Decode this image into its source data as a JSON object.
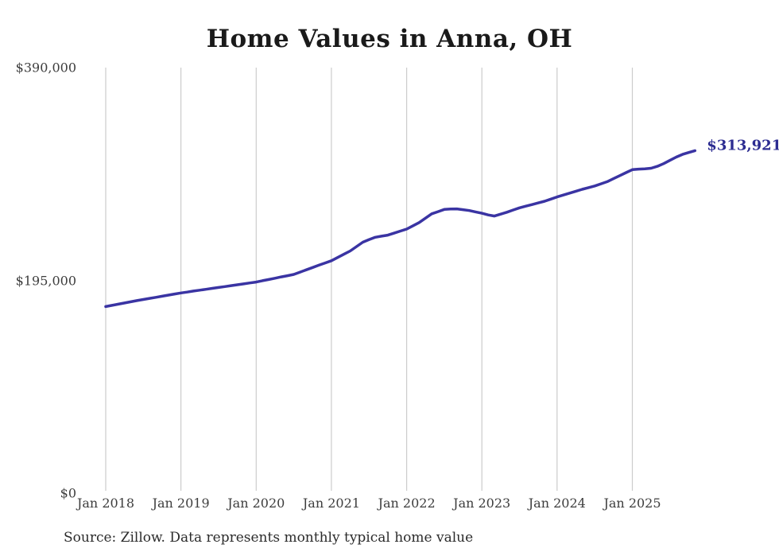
{
  "title": "Home Values in Anna, OH",
  "end_label": "$313,921",
  "source": "Source: Zillow. Data represents monthly typical home value",
  "colors": {
    "line": "#3a34a3",
    "end_label": "#2c2c91",
    "grid": "#cccccc",
    "axis_text": "#3d3d3d",
    "title_text": "#1a1a1a",
    "background": "#ffffff"
  },
  "axes": {
    "y": {
      "ticks": [
        {
          "label": "$390,000",
          "value": 390000
        },
        {
          "label": "$195,000",
          "value": 195000
        },
        {
          "label": "$0",
          "value": 0
        }
      ]
    },
    "x": {
      "ticks": [
        "Jan 2018",
        "Jan 2019",
        "Jan 2020",
        "Jan 2021",
        "Jan 2022",
        "Jan 2023",
        "Jan 2024",
        "Jan 2025"
      ]
    }
  },
  "chart_data": {
    "type": "line",
    "title": "Home Values in Anna, OH",
    "series_name": "Monthly typical home value",
    "x_frequency": "monthly",
    "x_start_label": "Jan 2018",
    "x_tick_labels": [
      "Jan 2018",
      "Jan 2019",
      "Jan 2020",
      "Jan 2021",
      "Jan 2022",
      "Jan 2023",
      "Jan 2024",
      "Jan 2025"
    ],
    "x_ticks_every_n_points": 12,
    "ylim": [
      0,
      390000
    ],
    "grid": "vertical-only",
    "legend": "none",
    "final_value": 313921,
    "final_value_label": "$313,921",
    "values": [
      171000,
      172100,
      173200,
      174300,
      175400,
      176450,
      177500,
      178500,
      179500,
      180500,
      181500,
      182500,
      183500,
      184300,
      185200,
      186000,
      186800,
      187700,
      188500,
      189300,
      190200,
      191000,
      191800,
      192700,
      193500,
      194700,
      195800,
      197000,
      198200,
      199300,
      200500,
      202600,
      204700,
      206800,
      208900,
      211000,
      213000,
      216000,
      219000,
      222000,
      226000,
      230000,
      232300,
      234500,
      235500,
      236500,
      238300,
      240200,
      242000,
      245000,
      248000,
      252000,
      256000,
      258000,
      260000,
      260400,
      260500,
      259800,
      259000,
      257800,
      256500,
      255000,
      254000,
      255700,
      257500,
      259500,
      261500,
      263000,
      264500,
      266000,
      267500,
      269500,
      271500,
      273200,
      275000,
      276700,
      278500,
      280000,
      281500,
      283500,
      285500,
      288200,
      291000,
      293800,
      296500,
      297000,
      297300,
      297800,
      299500,
      302000,
      305000,
      308000,
      310500,
      312200,
      313921
    ]
  }
}
